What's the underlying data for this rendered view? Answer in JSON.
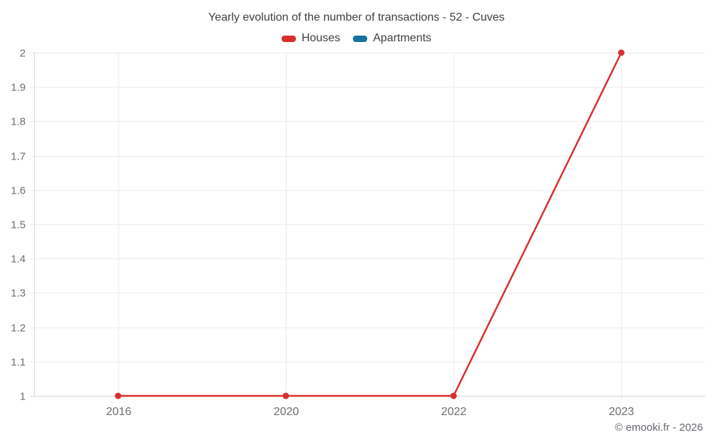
{
  "chart_data": {
    "type": "line",
    "title": "Yearly evolution of the number of transactions - 52 - Cuves",
    "categories": [
      "2016",
      "2020",
      "2022",
      "2023"
    ],
    "series": [
      {
        "name": "Houses",
        "color": "#d7302f",
        "values": [
          1,
          1,
          1,
          2
        ]
      },
      {
        "name": "Apartments",
        "color": "#1572a1",
        "values": []
      }
    ],
    "ylim": [
      1,
      2
    ],
    "yticks": [
      {
        "value": 1,
        "label": "1"
      },
      {
        "value": 1.1,
        "label": "1.1"
      },
      {
        "value": 1.2,
        "label": "1.2"
      },
      {
        "value": 1.3,
        "label": "1.3"
      },
      {
        "value": 1.4,
        "label": "1.4"
      },
      {
        "value": 1.5,
        "label": "1.5"
      },
      {
        "value": 1.6,
        "label": "1.6"
      },
      {
        "value": 1.7,
        "label": "1.7"
      },
      {
        "value": 1.8,
        "label": "1.8"
      },
      {
        "value": 1.9,
        "label": "1.9"
      },
      {
        "value": 2,
        "label": "2"
      }
    ],
    "grid": true,
    "legend_position": "top",
    "line_width": 2.5,
    "marker_radius": 4.5
  },
  "colors": {
    "grid": "#ececec",
    "axis": "#d6d6d6",
    "tick_text": "#6f6f6f",
    "title_text": "#3f3f3f",
    "watermark_text": "#65696e"
  },
  "footer": {
    "watermark": "© emooki.fr - 2026"
  }
}
